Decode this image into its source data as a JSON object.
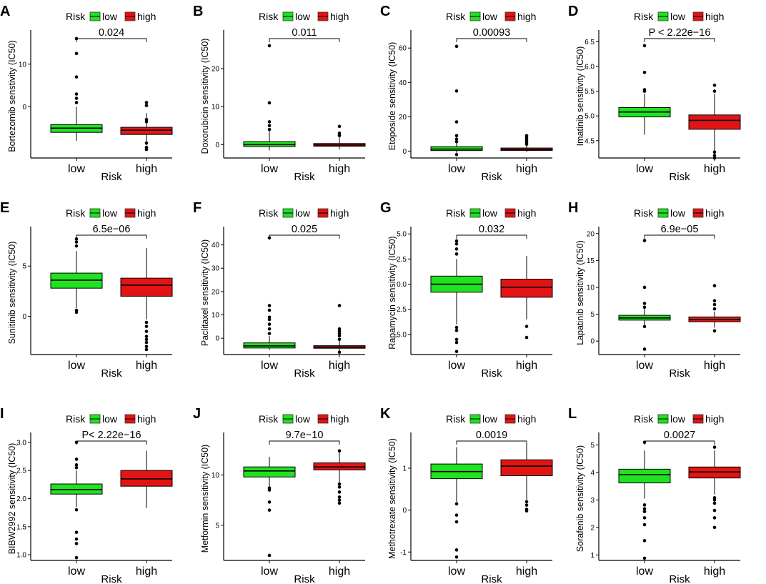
{
  "colors": {
    "low": "#21e221",
    "high": "#e41414",
    "axis": "#000000"
  },
  "legend": {
    "title": "Risk",
    "labels": [
      "low",
      "high"
    ]
  },
  "chart_data": [
    {
      "letter": "A",
      "type": "box",
      "ylabel": "Bortezomib senstivity (IC50)",
      "xlabel": "Risk",
      "categories": [
        "low",
        "high"
      ],
      "ylim": [
        -12,
        17
      ],
      "yticks": [
        0,
        10
      ],
      "yticklabels": [
        "0",
        "10"
      ],
      "pvalue": "0.024",
      "boxes": [
        {
          "group": "low",
          "whisker_low": -8,
          "q1": -6,
          "median": -5,
          "q3": -4.2,
          "whisker_high": 0,
          "outliers": [
            1,
            2,
            3,
            7,
            12.5,
            16
          ]
        },
        {
          "group": "high",
          "whisker_low": -9,
          "q1": -6.5,
          "median": -5.5,
          "q3": -4.8,
          "whisker_high": -1.5,
          "outliers": [
            -10,
            -9.5,
            -8.5,
            -3.5,
            -3,
            0.3,
            1
          ]
        }
      ]
    },
    {
      "letter": "B",
      "type": "box",
      "ylabel": "Doxorubicin sensitivity (IC50)",
      "xlabel": "Risk",
      "categories": [
        "low",
        "high"
      ],
      "ylim": [
        -3.5,
        29
      ],
      "yticks": [
        0,
        10,
        20
      ],
      "yticklabels": [
        "0",
        "10",
        "20"
      ],
      "pvalue": "0.011",
      "boxes": [
        {
          "group": "low",
          "whisker_low": -1.5,
          "q1": -0.5,
          "median": 0,
          "q3": 0.8,
          "whisker_high": 3.5,
          "outliers": [
            4,
            5,
            6,
            11,
            26
          ]
        },
        {
          "group": "high",
          "whisker_low": -1.2,
          "q1": -0.4,
          "median": -0.1,
          "q3": 0.3,
          "whisker_high": 2,
          "outliers": [
            2.4,
            3,
            4.8
          ]
        }
      ]
    },
    {
      "letter": "C",
      "type": "box",
      "ylabel": "Etoposide sensitivity (IC50)",
      "xlabel": "Risk",
      "categories": [
        "low",
        "high"
      ],
      "ylim": [
        -4,
        68
      ],
      "yticks": [
        0,
        20,
        40,
        60
      ],
      "yticklabels": [
        "0",
        "20",
        "40",
        "60"
      ],
      "pvalue": "0.00093",
      "boxes": [
        {
          "group": "low",
          "whisker_low": -1,
          "q1": 0.3,
          "median": 1.2,
          "q3": 2.6,
          "whisker_high": 5,
          "outliers": [
            -2,
            5.5,
            7,
            9,
            17,
            35,
            61
          ]
        },
        {
          "group": "high",
          "whisker_low": -0.5,
          "q1": 0.4,
          "median": 1,
          "q3": 1.8,
          "whisker_high": 3.5,
          "outliers": [
            4,
            5,
            6,
            7,
            8,
            9
          ]
        }
      ]
    },
    {
      "letter": "D",
      "type": "box",
      "ylabel": "Imatinib sensitivity (IC50)",
      "xlabel": "Risk",
      "categories": [
        "low",
        "high"
      ],
      "ylim": [
        4.15,
        6.65
      ],
      "yticks": [
        4.5,
        5.0,
        5.5,
        6.0,
        6.5
      ],
      "yticklabels": [
        "4.5",
        "5.0",
        "5.5",
        "6.0",
        "6.5"
      ],
      "pvalue": "P < 2.22e−16",
      "boxes": [
        {
          "group": "low",
          "whisker_low": 4.62,
          "q1": 4.98,
          "median": 5.08,
          "q3": 5.17,
          "whisker_high": 5.45,
          "outliers": [
            5.5,
            5.53,
            5.88,
            6.42
          ]
        },
        {
          "group": "high",
          "whisker_low": 4.3,
          "q1": 4.73,
          "median": 4.91,
          "q3": 5.02,
          "whisker_high": 5.45,
          "outliers": [
            4.15,
            4.2,
            4.27,
            5.5,
            5.62
          ]
        }
      ]
    },
    {
      "letter": "E",
      "type": "box",
      "ylabel": "Sunitinib sensitivity (IC50)",
      "xlabel": "Risk",
      "categories": [
        "low",
        "high"
      ],
      "ylim": [
        -3.8,
        8.5
      ],
      "yticks": [
        0,
        5
      ],
      "yticklabels": [
        "0",
        "5"
      ],
      "pvalue": "6.5e−06",
      "boxes": [
        {
          "group": "low",
          "whisker_low": 0.8,
          "q1": 2.8,
          "median": 3.6,
          "q3": 4.3,
          "whisker_high": 6.5,
          "outliers": [
            0.6,
            0.4,
            7,
            7.4,
            7.7
          ]
        },
        {
          "group": "high",
          "whisker_low": -0.3,
          "q1": 2,
          "median": 3.1,
          "q3": 3.8,
          "whisker_high": 6.8,
          "outliers": [
            -0.6,
            -1,
            -1.5,
            -2,
            -2.3,
            -2.6,
            -3,
            -3.3
          ]
        }
      ]
    },
    {
      "letter": "F",
      "type": "box",
      "ylabel": "Paclitaxel sensitivity (IC50)",
      "xlabel": "Risk",
      "categories": [
        "low",
        "high"
      ],
      "ylim": [
        -7,
        46
      ],
      "yticks": [
        0,
        10,
        20,
        30,
        40
      ],
      "yticklabels": [
        "0",
        "10",
        "20",
        "30",
        "40"
      ],
      "pvalue": "0.025",
      "boxes": [
        {
          "group": "low",
          "whisker_low": -5,
          "q1": -4.2,
          "median": -3.3,
          "q3": -2,
          "whisker_high": 1,
          "outliers": [
            2,
            4,
            6,
            8,
            9,
            12,
            14,
            43
          ]
        },
        {
          "group": "high",
          "whisker_low": -5.5,
          "q1": -4.3,
          "median": -3.8,
          "q3": -3.2,
          "whisker_high": -1,
          "outliers": [
            -6,
            -0.5,
            1,
            2,
            3,
            4,
            14
          ]
        }
      ]
    },
    {
      "letter": "G",
      "type": "box",
      "ylabel": "Rapamycin sensitivity (IC50)",
      "xlabel": "Risk",
      "categories": [
        "low",
        "high"
      ],
      "ylim": [
        -7,
        5.3
      ],
      "yticks": [
        -5.0,
        -2.5,
        0.0,
        2.5,
        5.0
      ],
      "yticklabels": [
        "-5.0",
        "-2.5",
        "0.0",
        "2.5",
        "5.0"
      ],
      "pvalue": "0.032",
      "boxes": [
        {
          "group": "low",
          "whisker_low": -4,
          "q1": -0.8,
          "median": 0,
          "q3": 0.8,
          "whisker_high": 2.5,
          "outliers": [
            -4.3,
            -4.6,
            -5.5,
            -5.8,
            -6.7,
            3,
            3.5,
            4,
            4.3
          ]
        },
        {
          "group": "high",
          "whisker_low": -3.5,
          "q1": -1.3,
          "median": -0.3,
          "q3": 0.5,
          "whisker_high": 2.8,
          "outliers": [
            -4.2,
            -5.3
          ]
        }
      ]
    },
    {
      "letter": "H",
      "type": "box",
      "ylabel": "Lapatinib sensitivity (IC50)",
      "xlabel": "Risk",
      "categories": [
        "low",
        "high"
      ],
      "ylim": [
        -2.5,
        20.5
      ],
      "yticks": [
        0,
        5,
        10,
        15,
        20
      ],
      "yticklabels": [
        "0",
        "5",
        "10",
        "15",
        "20"
      ],
      "pvalue": "6.9e−05",
      "boxes": [
        {
          "group": "low",
          "whisker_low": 3,
          "q1": 3.9,
          "median": 4.3,
          "q3": 4.8,
          "whisker_high": 6,
          "outliers": [
            -1.5,
            2.7,
            6.3,
            7,
            10,
            18.7
          ]
        },
        {
          "group": "high",
          "whisker_low": 2.5,
          "q1": 3.6,
          "median": 4,
          "q3": 4.5,
          "whisker_high": 5.5,
          "outliers": [
            1.9,
            6,
            6.8,
            7.5,
            10.3
          ]
        }
      ]
    },
    {
      "letter": "I",
      "type": "box",
      "ylabel": "BIBW2992 sensitivity (IC50)",
      "xlabel": "Risk",
      "categories": [
        "low",
        "high"
      ],
      "ylim": [
        0.9,
        3.1
      ],
      "yticks": [
        1.0,
        1.5,
        2.0,
        2.5,
        3.0
      ],
      "yticklabels": [
        "1.0",
        "1.5",
        "2.0",
        "2.5",
        "3.0"
      ],
      "pvalue": "P< 2.22e−16",
      "boxes": [
        {
          "group": "low",
          "whisker_low": 1.85,
          "q1": 2.08,
          "median": 2.16,
          "q3": 2.26,
          "whisker_high": 2.5,
          "outliers": [
            0.95,
            1.2,
            1.28,
            1.4,
            1.8,
            2.55,
            2.6,
            2.7,
            3.0
          ]
        },
        {
          "group": "high",
          "whisker_low": 1.83,
          "q1": 2.22,
          "median": 2.35,
          "q3": 2.5,
          "whisker_high": 2.85,
          "outliers": []
        }
      ]
    },
    {
      "letter": "J",
      "type": "box",
      "ylabel": "Metformin sensitivity (IC50)",
      "xlabel": "Risk",
      "categories": [
        "low",
        "high"
      ],
      "ylim": [
        1.5,
        13.8
      ],
      "yticks": [
        5,
        10
      ],
      "yticklabels": [
        "5",
        "10"
      ],
      "pvalue": "9.7e−10",
      "boxes": [
        {
          "group": "low",
          "whisker_low": 8.8,
          "q1": 9.8,
          "median": 10.4,
          "q3": 10.8,
          "whisker_high": 11.8,
          "outliers": [
            2,
            6.5,
            7.3,
            8.5,
            8.7
          ]
        },
        {
          "group": "high",
          "whisker_low": 9.3,
          "q1": 10.5,
          "median": 10.8,
          "q3": 11.2,
          "whisker_high": 12.3,
          "outliers": [
            7.2,
            7.5,
            7.8,
            8.3,
            8.8,
            9.1,
            12.4
          ]
        }
      ]
    },
    {
      "letter": "K",
      "type": "box",
      "ylabel": "Methotrexate sensitivity (IC50)",
      "xlabel": "Risk",
      "categories": [
        "low",
        "high"
      ],
      "ylim": [
        -1.2,
        1.75
      ],
      "yticks": [
        -1,
        0,
        1
      ],
      "yticklabels": [
        "-1",
        "0",
        "1"
      ],
      "pvalue": "0.0019",
      "boxes": [
        {
          "group": "low",
          "whisker_low": 0.2,
          "q1": 0.75,
          "median": 0.92,
          "q3": 1.1,
          "whisker_high": 1.5,
          "outliers": [
            0.15,
            -0.12,
            -0.28,
            -0.95,
            -1.12
          ]
        },
        {
          "group": "high",
          "whisker_low": 0.25,
          "q1": 0.82,
          "median": 1.05,
          "q3": 1.2,
          "whisker_high": 1.6,
          "outliers": [
            0.2,
            0.12,
            0.02,
            -0.02
          ]
        }
      ]
    },
    {
      "letter": "L",
      "type": "box",
      "ylabel": "Sorafenib sensitivity (IC50)",
      "xlabel": "Risk",
      "categories": [
        "low",
        "high"
      ],
      "ylim": [
        0.8,
        5.3
      ],
      "yticks": [
        1,
        2,
        3,
        4,
        5
      ],
      "yticklabels": [
        "1",
        "2",
        "3",
        "4",
        "5"
      ],
      "pvalue": "0.0027",
      "boxes": [
        {
          "group": "low",
          "whisker_low": 3.05,
          "q1": 3.62,
          "median": 3.92,
          "q3": 4.12,
          "whisker_high": 4.8,
          "outliers": [
            0.88,
            1.52,
            2.1,
            2.35,
            2.58,
            2.68,
            2.82,
            5.1
          ]
        },
        {
          "group": "high",
          "whisker_low": 3.2,
          "q1": 3.8,
          "median": 4.02,
          "q3": 4.2,
          "whisker_high": 4.8,
          "outliers": [
            2.0,
            2.35,
            2.62,
            2.88,
            3.0,
            3.08,
            4.92
          ]
        }
      ]
    }
  ]
}
